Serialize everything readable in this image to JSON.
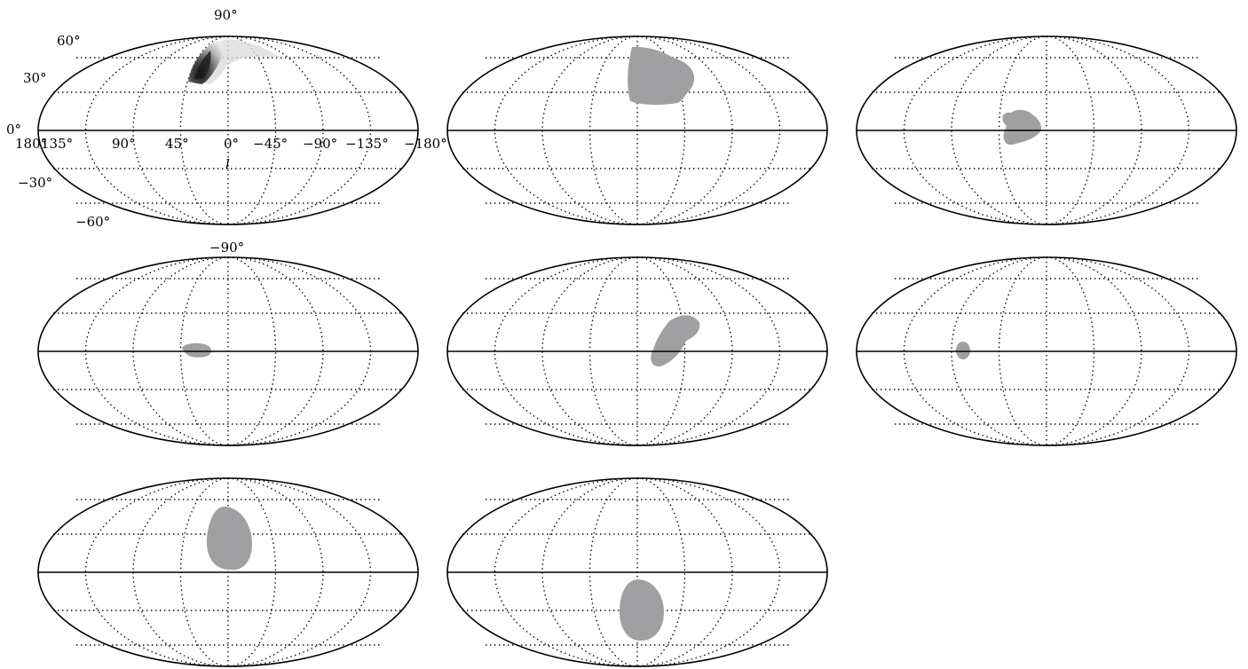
{
  "labels": {
    "lat_top": "90°",
    "lat_60": "60°",
    "lat_30": "30°",
    "lat_0": "0°",
    "lat_m30": "−30°",
    "lat_m60": "−60°",
    "lat_bottom": "−90°",
    "lon_180": "180°",
    "lon_135": "135°",
    "lon_90": "90°",
    "lon_45": "45°",
    "lon_0": "0°",
    "lon_m45": "−45°",
    "lon_m90": "−90°",
    "lon_m135": "−135°",
    "lon_m180": "−180°",
    "axis_l": "l"
  },
  "projection": "mollweide",
  "graticule": {
    "longitudes": [
      135,
      90,
      45,
      0,
      -45,
      -90,
      -135
    ],
    "latitudes": [
      60,
      30,
      0,
      -30,
      -60
    ]
  },
  "colors": {
    "region": "#a0a0a2",
    "line": "#000000"
  },
  "panels": [
    {
      "id": "p1",
      "region": {
        "type": "density",
        "lon": [
          10,
          60
        ],
        "lat": [
          25,
          80
        ]
      }
    },
    {
      "id": "p2",
      "region": {
        "type": "blob",
        "lon": [
          -30,
          10
        ],
        "lat": [
          20,
          65
        ]
      }
    },
    {
      "id": "p3",
      "region": {
        "type": "blob",
        "lon": [
          20,
          -10
        ],
        "lat": [
          -12,
          15
        ]
      }
    },
    {
      "id": "p4",
      "region": {
        "type": "blob",
        "lon": [
          45,
          20
        ],
        "lat": [
          -5,
          5
        ]
      }
    },
    {
      "id": "p5",
      "region": {
        "type": "blob",
        "lon": [
          0,
          -40
        ],
        "lat": [
          -12,
          25
        ]
      }
    },
    {
      "id": "p6",
      "region": {
        "type": "blob",
        "lon": [
          97,
          88
        ],
        "lat": [
          -6,
          7
        ]
      }
    },
    {
      "id": "p7",
      "region": {
        "type": "blob",
        "lon": [
          25,
          -3
        ],
        "lat": [
          5,
          55
        ]
      }
    },
    {
      "id": "p8",
      "region": {
        "type": "blob",
        "lon": [
          20,
          -18
        ],
        "lat": [
          -80,
          -28
        ]
      }
    }
  ]
}
